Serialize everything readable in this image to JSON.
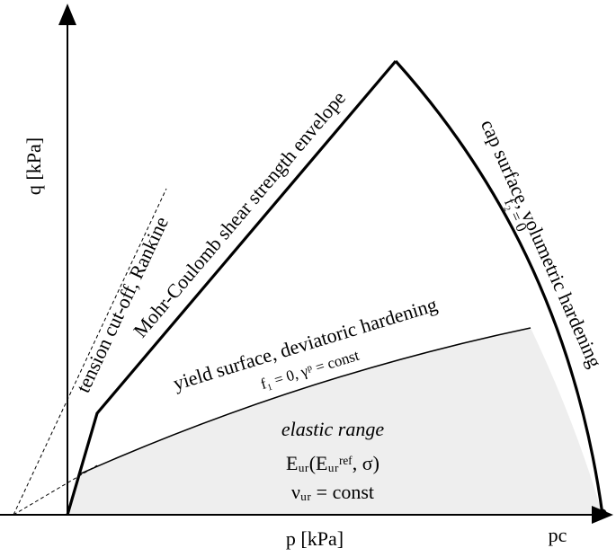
{
  "axes": {
    "y_label": "q [kPa]",
    "x_label": "p [kPa]",
    "pc_label": "pc"
  },
  "labels": {
    "mohr_coulomb": "Mohr-Coulomb shear strength envelope",
    "tension_cutoff": "tension cut-off, Rankine",
    "yield_surface": "yield surface, deviatoric hardening",
    "yield_condition": "f₁ = 0, γᵖ = const",
    "cap_surface": "cap surface, volumetric hardening",
    "cap_condition": "f₂ = 0",
    "elastic_range": "elastic range",
    "stiffness": "Eᵤᵣ(Eᵤᵣʳᵉᶠ, σ)",
    "poisson": "νᵤᵣ = const"
  }
}
